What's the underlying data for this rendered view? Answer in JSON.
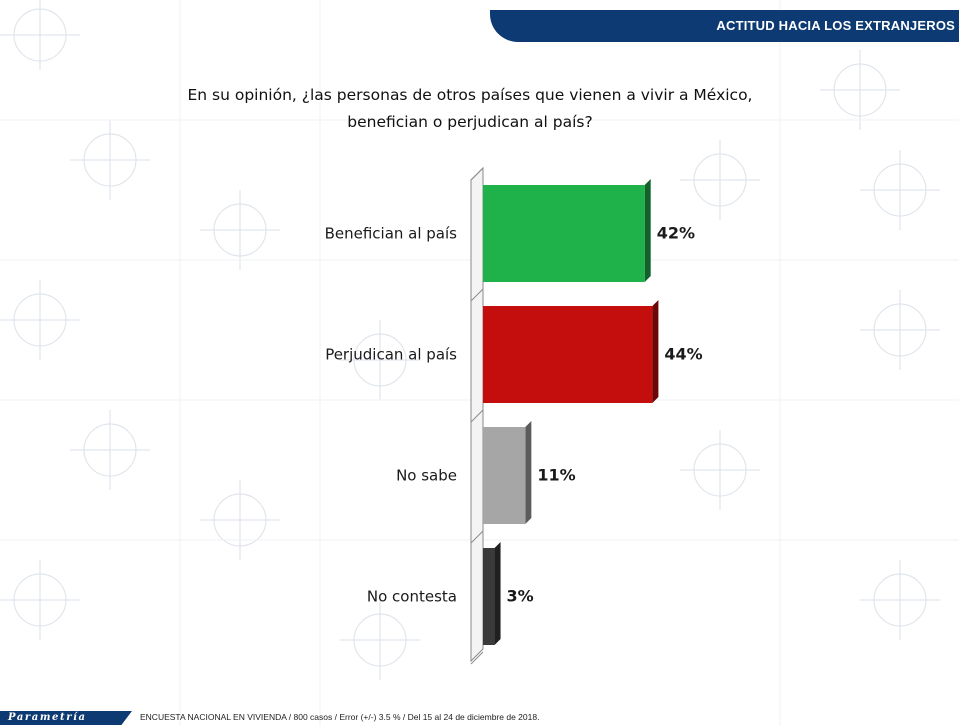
{
  "header": {
    "title": "ACTITUD  HACIA  LOS EXTRANJEROS"
  },
  "question": {
    "line1": "En su opinión, ¿las personas de otros países que vienen a vivir a México,",
    "line2": "benefician o perjudican al país?"
  },
  "chart_data": {
    "type": "bar",
    "orientation": "horizontal",
    "categories": [
      "Benefician al país",
      "Perjudican al país",
      "No sabe",
      "No contesta"
    ],
    "values": [
      42,
      44,
      11,
      3
    ],
    "value_labels": [
      "42%",
      "44%",
      "11%",
      "3%"
    ],
    "colors": [
      "#1fb24a",
      "#c40d0d",
      "#a6a6a6",
      "#3a3a3a"
    ],
    "xlim": [
      0,
      100
    ],
    "grid": false,
    "legend": "none"
  },
  "footer": {
    "logo": "Parametría",
    "note": "ENCUESTA  NACIONAL EN VIVIENDA  / 800 casos / Error (+/-)  3.5 % / Del 15 al 24 de diciembre de 2018."
  }
}
